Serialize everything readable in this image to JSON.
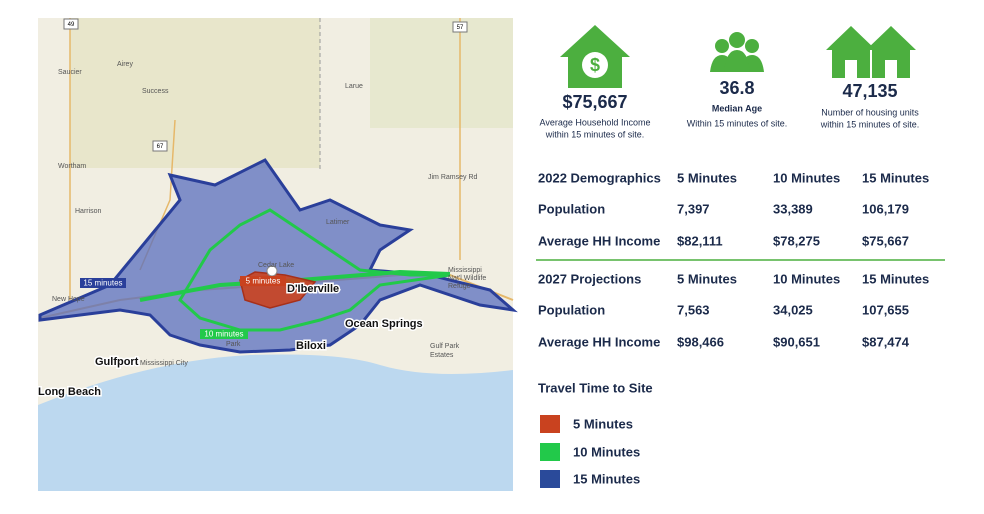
{
  "map": {
    "places": [
      "Saucier",
      "Airey",
      "Success",
      "Larue",
      "Wortham",
      "Harrison",
      "Latimer",
      "New Hope",
      "Mississippi City",
      "Cedar Lake",
      "Park",
      "Gulf Park",
      "Estates",
      "Mississippi",
      "Nat'l Wildlife",
      "Refuge",
      "Jim Ramsey Rd"
    ],
    "cities": [
      "Gulfport",
      "Long Beach",
      "Biloxi",
      "D'Iberville",
      "Ocean Springs"
    ],
    "zone_labels": [
      "15 minutes",
      "10 minutes",
      "5 minutes"
    ],
    "highway_shields": [
      "49",
      "57",
      "67"
    ]
  },
  "stats": [
    {
      "value": "$75,667",
      "line1": "Average Household Income",
      "line2": "within 15 minutes of site."
    },
    {
      "value": "36.8",
      "line1": "Median Age",
      "line2": "Within 15 minutes of site."
    },
    {
      "value": "47,135",
      "line1": "Number of housing units",
      "line2": "within 15 minutes of site."
    }
  ],
  "demographics_2022": {
    "header": [
      "2022 Demographics",
      "5 Minutes",
      "10 Minutes",
      "15 Minutes"
    ],
    "rows": [
      [
        "Population",
        "7,397",
        "33,389",
        "106,179"
      ],
      [
        "Average HH Income",
        "$82,111",
        "$78,275",
        "$75,667"
      ]
    ]
  },
  "projections_2027": {
    "header": [
      "2027 Projections",
      "5 Minutes",
      "10 Minutes",
      "15 Minutes"
    ],
    "rows": [
      [
        "Population",
        "7,563",
        "34,025",
        "107,655"
      ],
      [
        "Average HH Income",
        "$98,466",
        "$90,651",
        "$87,474"
      ]
    ]
  },
  "legend": {
    "title": "Travel Time to Site",
    "items": [
      "5 Minutes",
      "10 Minutes",
      "15 Minutes"
    ]
  }
}
